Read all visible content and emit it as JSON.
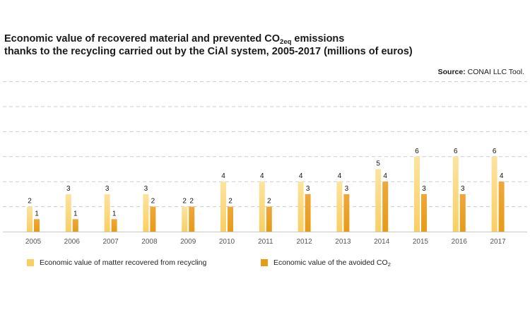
{
  "title": {
    "line1_prefix": "Economic value of recovered material and prevented CO",
    "line1_sub": "2eq",
    "line1_suffix": " emissions",
    "line2": "thanks to the recycling carried out by the CiAl system, 2005-2017 (millions of euros)"
  },
  "source": {
    "label": "Source:",
    "text": " CONAI LLC Tool."
  },
  "colors": {
    "recovered": "#f9cf63",
    "avoided": "#e79b16",
    "grid": "#cccccc",
    "axis": "#c9c9c9"
  },
  "chart_data": {
    "type": "bar",
    "categories": [
      "2005",
      "2006",
      "2007",
      "2008",
      "2009",
      "2010",
      "2011",
      "2012",
      "2013",
      "2014",
      "2015",
      "2016",
      "2017"
    ],
    "series": [
      {
        "name": "Economic value of matter recovered from recycling",
        "values": [
          2,
          3,
          3,
          3,
          2,
          4,
          4,
          4,
          4,
          5,
          6,
          6,
          6
        ]
      },
      {
        "name": "Economic value of the avoided CO2",
        "values": [
          1,
          1,
          1,
          2,
          2,
          2,
          2,
          3,
          3,
          4,
          3,
          3,
          4
        ]
      }
    ],
    "ylim": [
      0,
      12
    ],
    "grid": true,
    "legend_position": "bottom-left",
    "data_labels": true
  },
  "legend": {
    "item1": "Economic value of matter recovered from recycling",
    "item2_prefix": "Economic value of the avoided CO",
    "item2_sub": "2"
  }
}
